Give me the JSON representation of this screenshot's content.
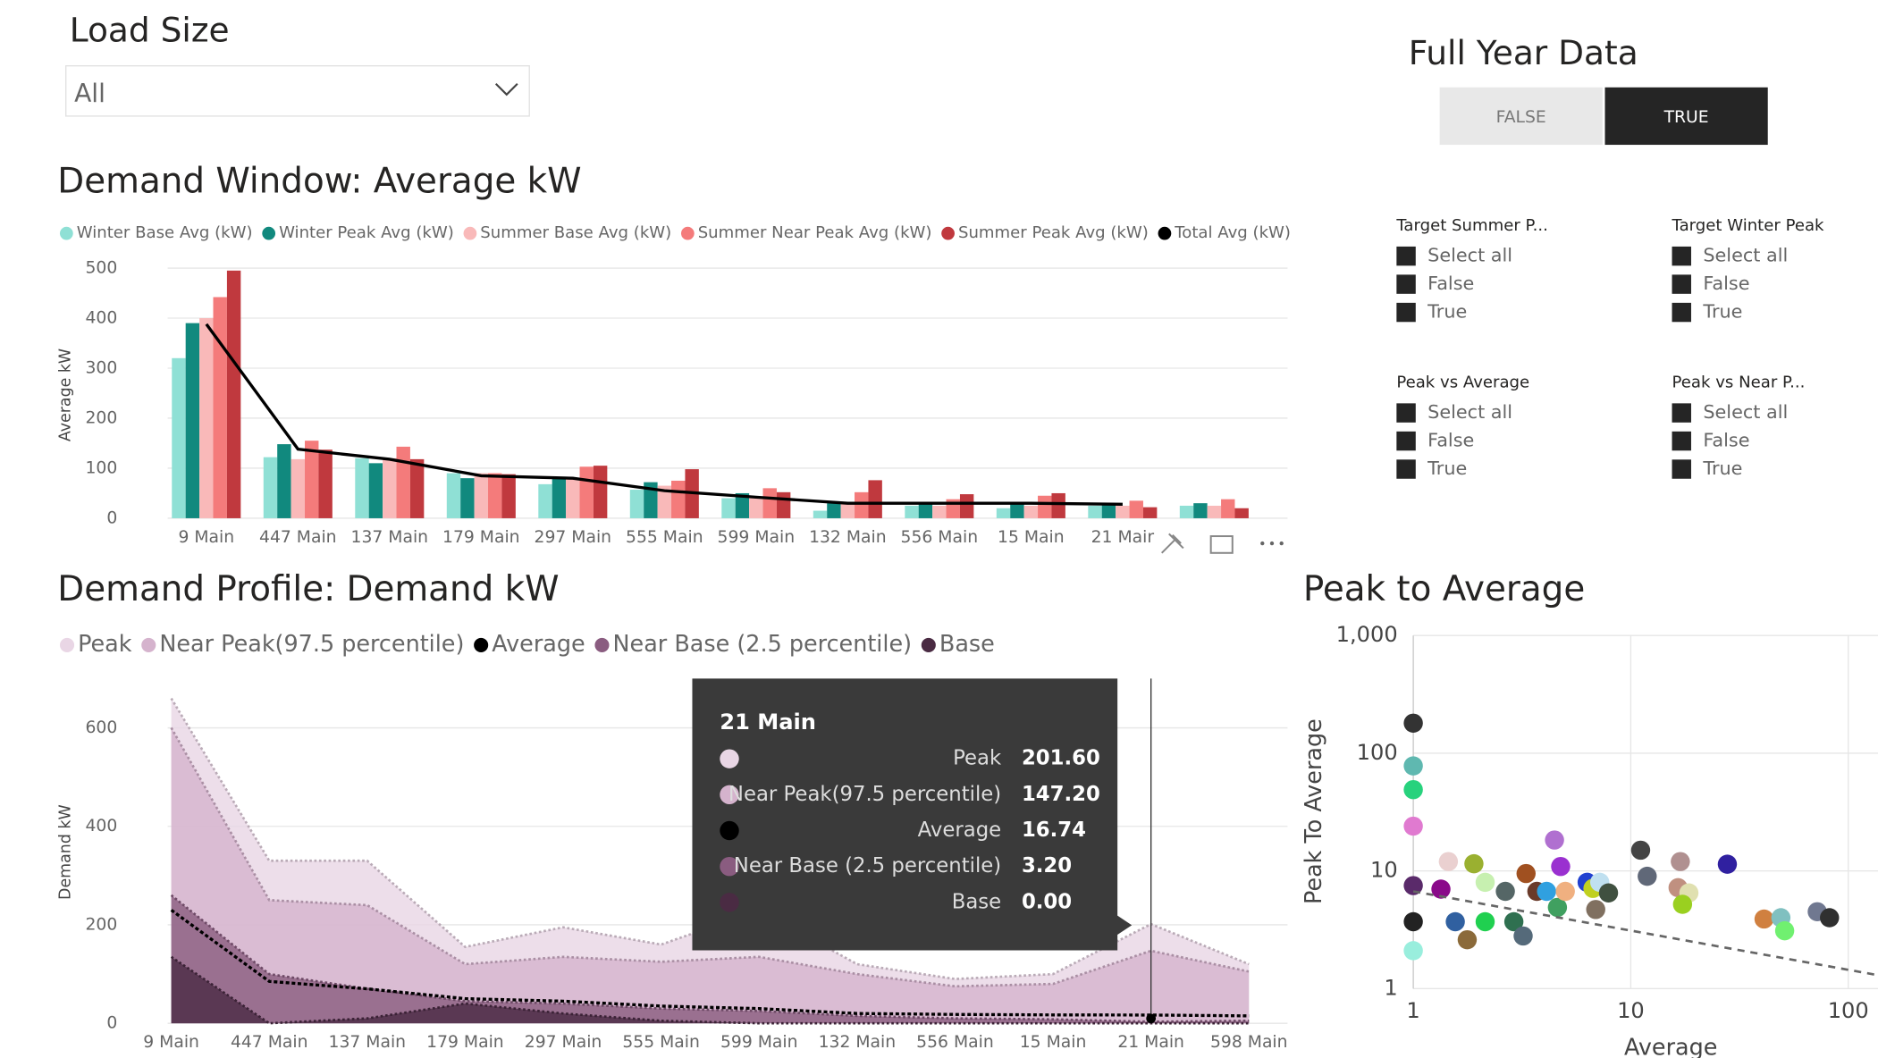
{
  "load_size": {
    "title": "Load Size",
    "value": "All"
  },
  "full_year": {
    "title": "Full Year Data",
    "options": [
      "FALSE",
      "TRUE"
    ],
    "selected": "TRUE"
  },
  "filters": [
    {
      "title": "Target Summer P...",
      "options": [
        "Select all",
        "False",
        "True"
      ]
    },
    {
      "title": "Target Winter Peak",
      "options": [
        "Select all",
        "False",
        "True"
      ]
    },
    {
      "title": "Peak vs Average",
      "options": [
        "Select all",
        "False",
        "True"
      ]
    },
    {
      "title": "Peak vs Near P...",
      "options": [
        "Select all",
        "False",
        "True"
      ]
    }
  ],
  "chart_data": [
    {
      "type": "bar",
      "title": "Demand Window: Average kW",
      "y_label": "Average kW",
      "categories": [
        "9 Main",
        "447 Main",
        "137 Main",
        "179 Main",
        "297 Main",
        "555 Main",
        "599 Main",
        "132 Main",
        "556 Main",
        "15 Main",
        "21 Mair",
        null
      ],
      "series": [
        {
          "name": "Winter Base Avg (kW)",
          "color": "#8fe0d5",
          "values": [
            320,
            122,
            120,
            90,
            68,
            57,
            40,
            15,
            25,
            20,
            25,
            25
          ]
        },
        {
          "name": "Winter Peak Avg (kW)",
          "color": "#11897e",
          "values": [
            390,
            148,
            110,
            80,
            82,
            72,
            50,
            30,
            30,
            30,
            30,
            30
          ]
        },
        {
          "name": "Summer Base Avg (kW)",
          "color": "#f9b9b9",
          "values": [
            400,
            118,
            120,
            90,
            80,
            65,
            40,
            30,
            25,
            25,
            25,
            25
          ]
        },
        {
          "name": "Summer Near Peak Avg (kW)",
          "color": "#f47b7b",
          "values": [
            442,
            155,
            143,
            90,
            103,
            75,
            60,
            52,
            38,
            45,
            35,
            38
          ]
        },
        {
          "name": "Summer Peak Avg (kW)",
          "color": "#c0393e",
          "values": [
            495,
            137,
            118,
            88,
            105,
            98,
            52,
            76,
            48,
            50,
            22,
            20
          ]
        },
        {
          "name": "Total Avg (kW)",
          "color": "#000000",
          "type": "line",
          "values": [
            388,
            138,
            118,
            85,
            80,
            55,
            42,
            30,
            30,
            30,
            28,
            null
          ]
        }
      ],
      "ylim": [
        0,
        500
      ],
      "yticks": [
        0,
        100,
        200,
        300,
        400,
        500
      ],
      "grid": true
    },
    {
      "type": "area",
      "title": "Demand Profile: Demand kW",
      "y_label": "Demand kW",
      "categories": [
        "9 Main",
        "447 Main",
        "137 Main",
        "179 Main",
        "297 Main",
        "555 Main",
        "599 Main",
        "132 Main",
        "556 Main",
        "15 Main",
        "21 Main",
        "598 Main"
      ],
      "series": [
        {
          "name": "Peak",
          "color": "#e9d6e5",
          "values": [
            660,
            330,
            330,
            155,
            195,
            160,
            230,
            120,
            90,
            100,
            201.6,
            120
          ]
        },
        {
          "name": "Near Peak(97.5 percentile)",
          "color": "#d5b3cd",
          "values": [
            600,
            250,
            240,
            120,
            135,
            125,
            135,
            100,
            75,
            80,
            147.2,
            105
          ]
        },
        {
          "name": "Average",
          "color": "#000000",
          "type": "line",
          "values": [
            230,
            85,
            70,
            50,
            45,
            35,
            30,
            20,
            18,
            17,
            16.74,
            15
          ]
        },
        {
          "name": "Near Base (2.5 percentile)",
          "color": "#8a5c80",
          "values": [
            260,
            100,
            70,
            45,
            40,
            30,
            25,
            15,
            10,
            8,
            3.2,
            5
          ]
        },
        {
          "name": "Base",
          "color": "#4a2b43",
          "values": [
            135,
            0,
            10,
            40,
            20,
            5,
            0,
            0,
            0,
            0,
            0,
            0
          ]
        }
      ],
      "ylim": [
        0,
        700
      ],
      "yticks": [
        0,
        200,
        400,
        600
      ],
      "grid": true,
      "tooltip": {
        "category": "21 Main",
        "rows": [
          {
            "name": "Peak",
            "value": "201.60"
          },
          {
            "name": "Near Peak(97.5 percentile)",
            "value": "147.20"
          },
          {
            "name": "Average",
            "value": "16.74"
          },
          {
            "name": "Near Base (2.5 percentile)",
            "value": "3.20"
          },
          {
            "name": "Base",
            "value": "0.00"
          }
        ]
      }
    },
    {
      "type": "scatter",
      "title": "Peak to Average",
      "x_label": "Average",
      "y_label": "Peak To Average",
      "x": [
        1,
        1,
        1,
        1,
        1,
        1,
        1,
        1.34,
        1.45,
        1.9,
        2.14,
        1.56,
        1.77,
        2.14,
        2.65,
        2.9,
        3.2,
        3.3,
        3.7,
        4.1,
        4.46,
        4.6,
        4.76,
        5,
        6.3,
        6.7,
        6.9,
        7.2,
        7.9,
        11.1,
        11.9,
        16.9,
        16.5,
        18.5,
        17.3,
        27.8,
        41,
        49,
        51,
        72,
        82
      ],
      "y": [
        180,
        78,
        49,
        24,
        7.5,
        3.7,
        2.1,
        7,
        12,
        11.5,
        8,
        3.7,
        2.6,
        3.7,
        6.7,
        3.7,
        2.8,
        9.5,
        6.7,
        6.7,
        18.3,
        4.9,
        10.9,
        6.7,
        8,
        7.1,
        4.7,
        8,
        6.5,
        15,
        9,
        12,
        7.2,
        6.5,
        5.2,
        11.4,
        3.9,
        4,
        3.1,
        4.5,
        4
      ],
      "colors": [
        "#333333",
        "#5fb8b0",
        "#27d27d",
        "#e07ad0",
        "#5a2a6a",
        "#222222",
        "#99eedd",
        "#8a0a8a",
        "#ead0d0",
        "#9ab030",
        "#c7f0b0",
        "#3060a0",
        "#8b6a3a",
        "#20d050",
        "#556666",
        "#2f7050",
        "#556a7a",
        "#a05020",
        "#6a3a2a",
        "#30a0e0",
        "#b070d0",
        "#40a060",
        "#9a30d0",
        "#f0b080",
        "#2040d0",
        "#c0d020",
        "#807060",
        "#c0e0f0",
        "#405040",
        "#444444",
        "#606878",
        "#b09090",
        "#c09080",
        "#e0e0b0",
        "#9ad020",
        "#3020a0",
        "#d08040",
        "#80c0c0",
        "#70f070",
        "#707890",
        "#303030"
      ],
      "log_x": true,
      "log_y": true,
      "xlim": [
        1,
        137
      ],
      "ylim": [
        1,
        1000
      ],
      "xticks": [
        1,
        10,
        100
      ],
      "yticks": [
        1,
        10,
        100,
        {
          "value": 1000,
          "label": "1,000"
        }
      ],
      "grid": true,
      "trendline": {
        "x": [
          1,
          137
        ],
        "y": [
          6.7,
          1.3
        ]
      }
    }
  ]
}
